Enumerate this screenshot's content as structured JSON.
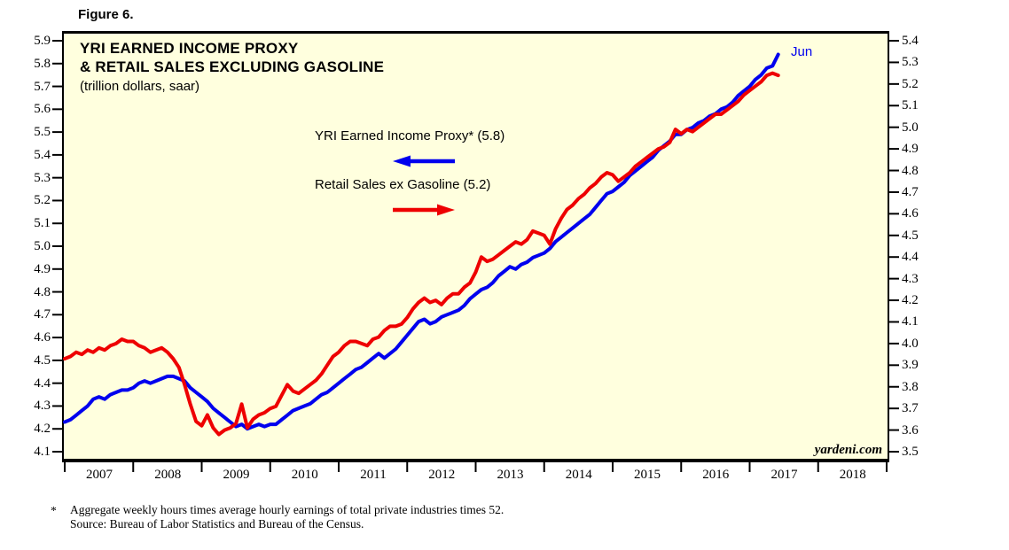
{
  "figure_label": "Figure 6.",
  "chart": {
    "title_line1": "YRI EARNED INCOME PROXY",
    "title_line2": "& RETAIL SALES EXCLUDING GASOLINE",
    "subtitle": "(trillion dollars, saar)",
    "end_label": "Jun",
    "watermark": "yardeni.com",
    "legend": [
      {
        "label": "YRI Earned Income Proxy* (5.8)",
        "color": "#0000EE",
        "arrow_direction": "left"
      },
      {
        "label": "Retail Sales ex Gasoline (5.2)",
        "color": "#EE0000",
        "arrow_direction": "right"
      }
    ]
  },
  "footnote": {
    "marker": "*",
    "line1": "Aggregate weekly hours times average hourly earnings of total private industries times 52.",
    "line2": "Source: Bureau of Labor Statistics and Bureau of the Census."
  },
  "chart_data": {
    "type": "line",
    "title": "YRI Earned Income Proxy & Retail Sales Excluding Gasoline (trillion dollars, saar)",
    "background_color": "#FFFFDE",
    "border_color": "#000000",
    "grid": false,
    "x_axis": {
      "start_year": 2007,
      "end_year": 2019,
      "tick_years": [
        2007,
        2008,
        2009,
        2010,
        2011,
        2012,
        2013,
        2014,
        2015,
        2016,
        2017,
        2018,
        2019
      ],
      "labels": [
        "2007",
        "2008",
        "2009",
        "2010",
        "2011",
        "2012",
        "2013",
        "2014",
        "2015",
        "2016",
        "2017",
        "2018"
      ]
    },
    "left_axis": {
      "min": 4.1,
      "max": 5.9,
      "step": 0.1,
      "labels": [
        "5.9",
        "5.8",
        "5.7",
        "5.6",
        "5.5",
        "5.4",
        "5.3",
        "5.2",
        "5.1",
        "5.0",
        "4.9",
        "4.8",
        "4.7",
        "4.6",
        "4.5",
        "4.4",
        "4.3",
        "4.2",
        "4.1"
      ]
    },
    "right_axis": {
      "min": 3.5,
      "max": 5.4,
      "step": 0.1,
      "labels": [
        "5.4",
        "5.3",
        "5.2",
        "5.1",
        "5.0",
        "4.9",
        "4.8",
        "4.7",
        "4.6",
        "4.5",
        "4.4",
        "4.3",
        "4.2",
        "4.1",
        "4.0",
        "3.9",
        "3.8",
        "3.7",
        "3.6",
        "3.5"
      ]
    },
    "frequency": "monthly",
    "data_start": "2007-01",
    "data_end": "2017-06",
    "series": [
      {
        "name": "YRI Earned Income Proxy",
        "axis": "left",
        "color": "#0000EE",
        "latest_point_label": "Jun",
        "latest_value": 5.8,
        "values": [
          4.23,
          4.24,
          4.26,
          4.28,
          4.3,
          4.33,
          4.34,
          4.33,
          4.35,
          4.36,
          4.37,
          4.37,
          4.38,
          4.4,
          4.41,
          4.4,
          4.41,
          4.42,
          4.43,
          4.43,
          4.42,
          4.41,
          4.38,
          4.36,
          4.34,
          4.32,
          4.29,
          4.27,
          4.25,
          4.23,
          4.21,
          4.22,
          4.2,
          4.21,
          4.22,
          4.21,
          4.22,
          4.22,
          4.24,
          4.26,
          4.28,
          4.29,
          4.3,
          4.31,
          4.33,
          4.35,
          4.36,
          4.38,
          4.4,
          4.42,
          4.44,
          4.46,
          4.47,
          4.49,
          4.51,
          4.53,
          4.51,
          4.53,
          4.55,
          4.58,
          4.61,
          4.64,
          4.67,
          4.68,
          4.66,
          4.67,
          4.69,
          4.7,
          4.71,
          4.72,
          4.74,
          4.77,
          4.79,
          4.81,
          4.82,
          4.84,
          4.87,
          4.89,
          4.91,
          4.9,
          4.92,
          4.93,
          4.95,
          4.96,
          4.97,
          4.99,
          5.02,
          5.04,
          5.06,
          5.08,
          5.1,
          5.12,
          5.14,
          5.17,
          5.2,
          5.23,
          5.24,
          5.26,
          5.28,
          5.31,
          5.33,
          5.35,
          5.37,
          5.39,
          5.42,
          5.44,
          5.46,
          5.49,
          5.49,
          5.51,
          5.52,
          5.54,
          5.55,
          5.57,
          5.58,
          5.6,
          5.61,
          5.63,
          5.66,
          5.68,
          5.7,
          5.73,
          5.75,
          5.78,
          5.79,
          5.84
        ]
      },
      {
        "name": "Retail Sales ex Gasoline",
        "axis": "right",
        "color": "#EE0000",
        "latest_value": 5.2,
        "values": [
          3.93,
          3.94,
          3.96,
          3.95,
          3.97,
          3.96,
          3.98,
          3.97,
          3.99,
          4.0,
          4.02,
          4.01,
          4.01,
          3.99,
          3.98,
          3.96,
          3.97,
          3.98,
          3.96,
          3.93,
          3.89,
          3.81,
          3.72,
          3.64,
          3.62,
          3.67,
          3.61,
          3.58,
          3.6,
          3.61,
          3.63,
          3.72,
          3.61,
          3.65,
          3.67,
          3.68,
          3.7,
          3.71,
          3.76,
          3.81,
          3.78,
          3.77,
          3.79,
          3.81,
          3.83,
          3.86,
          3.9,
          3.94,
          3.96,
          3.99,
          4.01,
          4.01,
          4.0,
          3.99,
          4.02,
          4.03,
          4.06,
          4.08,
          4.08,
          4.09,
          4.12,
          4.16,
          4.19,
          4.21,
          4.19,
          4.2,
          4.18,
          4.21,
          4.23,
          4.23,
          4.26,
          4.28,
          4.33,
          4.4,
          4.38,
          4.39,
          4.41,
          4.43,
          4.45,
          4.47,
          4.46,
          4.48,
          4.52,
          4.51,
          4.5,
          4.46,
          4.53,
          4.58,
          4.62,
          4.64,
          4.67,
          4.69,
          4.72,
          4.74,
          4.77,
          4.79,
          4.78,
          4.75,
          4.77,
          4.79,
          4.82,
          4.84,
          4.86,
          4.88,
          4.9,
          4.91,
          4.93,
          4.99,
          4.97,
          4.99,
          4.98,
          5.0,
          5.02,
          5.04,
          5.06,
          5.06,
          5.08,
          5.1,
          5.12,
          5.15,
          5.17,
          5.19,
          5.21,
          5.24,
          5.25,
          5.24
        ]
      }
    ]
  }
}
